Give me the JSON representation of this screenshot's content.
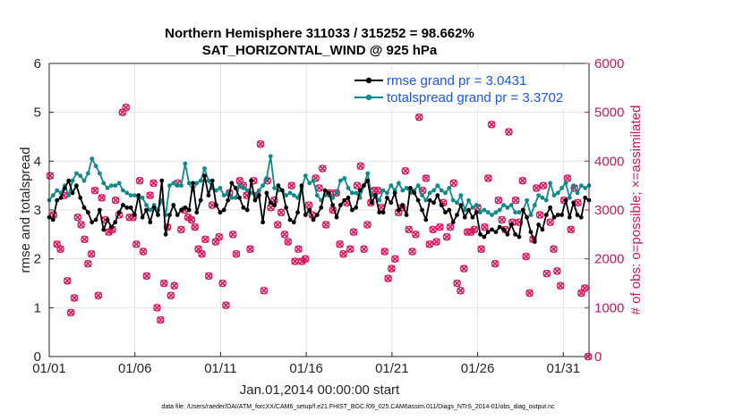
{
  "chart_data": {
    "type": "line",
    "title_line1": "Northern Hemisphere 311033 / 315252 = 98.662%",
    "title_line2": "SAT_HORIZONTAL_WIND @ 925 hPa",
    "xlabel": "Jan.01,2014 00:00:00 start",
    "ylabel_left": "rmse and totalspread",
    "ylabel_right": "# of obs: o=possible; ×=assimilated",
    "xlim": [
      0,
      31.5
    ],
    "ylim_left": [
      0,
      6
    ],
    "ylim_right": [
      0,
      6000
    ],
    "x_ticks": [
      0,
      5,
      10,
      15,
      20,
      25,
      30
    ],
    "x_tick_labels": [
      "01/01",
      "01/06",
      "01/11",
      "01/16",
      "01/21",
      "01/26",
      "01/31"
    ],
    "y_ticks_left": [
      "0",
      "1",
      "2",
      "3",
      "4",
      "5",
      "6"
    ],
    "y_ticks_right": [
      "0",
      "1000",
      "2000",
      "3000",
      "4000",
      "5000",
      "6000"
    ],
    "grid": true,
    "legend_position": "top-right",
    "footnote": "data file: /Users/raeder/DAI/ATM_forcXX/CAM6_setup/f.e21.FHIST_BGC.f09_025.CAM6assim.011/Diags_NTrS_2014-01/obs_diag_output.nc",
    "colors": {
      "rmse": "#000000",
      "spread": "#0f8a8a",
      "obs": "#d6195f",
      "legend_text": "#1a56e8",
      "right_axis": "#c8175f"
    },
    "series": [
      {
        "name": "rmse",
        "legend": "rmse grand pr = 3.0431",
        "values": [
          2.85,
          2.8,
          3.2,
          3.25,
          3.45,
          3.6,
          3.35,
          3.5,
          3.25,
          3.05,
          2.95,
          2.75,
          2.8,
          3.0,
          2.6,
          2.8,
          2.65,
          2.75,
          2.95,
          3.1,
          3.05,
          3.05,
          2.9,
          3.3,
          2.85,
          3.0,
          2.75,
          3.05,
          2.9,
          3.6,
          2.5,
          2.9,
          3.1,
          2.9,
          3.0,
          3.05,
          3.0,
          3.55,
          2.95,
          3.2,
          3.7,
          3.3,
          3.6,
          3.1,
          2.95,
          3.0,
          3.2,
          3.55,
          3.45,
          3.25,
          3.05,
          3.0,
          3.6,
          3.2,
          3.3,
          2.75,
          3.35,
          3.15,
          3.1,
          3.5,
          3.4,
          3.05,
          2.8,
          2.75,
          2.95,
          3.5,
          2.9,
          3.0,
          2.8,
          2.9,
          3.05,
          3.4,
          3.35,
          3.1,
          2.85,
          3.1,
          3.2,
          3.25,
          3.0,
          3.05,
          3.4,
          3.5,
          3.6,
          3.15,
          3.3,
          2.95,
          2.95,
          3.25,
          3.15,
          3.35,
          3.0,
          3.1,
          2.9,
          3.45,
          3.35,
          3.2,
          3.0,
          2.8,
          3.2,
          3.15,
          3.3,
          3.1,
          2.95,
          3.0,
          2.75,
          2.9,
          3.1,
          2.85,
          3.0,
          2.85,
          2.95,
          2.5,
          2.45,
          2.55,
          2.6,
          2.55,
          2.65,
          2.6,
          2.5,
          2.7,
          2.5,
          2.45,
          3.0,
          2.85,
          2.55,
          2.35,
          2.7,
          2.6,
          2.9,
          3.05,
          2.85,
          2.9,
          2.9,
          3.2,
          2.85,
          3.15,
          2.9,
          2.85,
          3.25,
          3.2
        ]
      },
      {
        "name": "totalspread",
        "legend": "totalspread grand pr = 3.3702",
        "values": [
          3.2,
          3.3,
          3.4,
          3.35,
          3.5,
          3.3,
          3.6,
          3.75,
          3.7,
          3.6,
          3.75,
          4.05,
          3.9,
          3.75,
          3.55,
          3.45,
          3.5,
          3.5,
          3.55,
          3.4,
          3.35,
          3.3,
          3.3,
          3.25,
          3.25,
          3.1,
          3.0,
          3.1,
          3.0,
          3.2,
          2.9,
          3.5,
          3.55,
          3.5,
          3.5,
          3.95,
          3.55,
          3.4,
          3.55,
          3.6,
          3.85,
          3.6,
          3.45,
          3.4,
          3.45,
          3.3,
          3.35,
          3.25,
          3.25,
          3.5,
          3.45,
          3.4,
          3.35,
          3.3,
          3.4,
          3.5,
          3.65,
          4.1,
          3.45,
          3.4,
          3.4,
          3.3,
          3.35,
          3.3,
          3.25,
          3.45,
          3.7,
          3.55,
          3.6,
          3.3,
          3.2,
          3.3,
          3.3,
          3.25,
          3.35,
          3.6,
          3.65,
          3.45,
          3.35,
          3.35,
          3.25,
          3.5,
          3.75,
          3.3,
          3.3,
          3.2,
          3.4,
          3.35,
          3.5,
          3.4,
          3.55,
          3.4,
          3.45,
          3.35,
          3.4,
          3.5,
          3.3,
          3.2,
          3.35,
          3.4,
          3.5,
          3.4,
          3.35,
          3.45,
          3.2,
          3.15,
          3.3,
          3.0,
          3.2,
          3.05,
          3.1,
          2.95,
          3.0,
          2.95,
          2.9,
          2.95,
          3.0,
          3.1,
          3.05,
          3.1,
          2.95,
          2.95,
          3.0,
          3.2,
          2.9,
          3.1,
          3.3,
          3.25,
          3.2,
          3.55,
          3.3,
          3.35,
          3.45,
          3.55,
          3.25,
          3.5,
          3.35,
          3.5,
          3.45,
          3.5
        ]
      }
    ],
    "obs_count": {
      "name": "# of obs",
      "values": [
        3700,
        2900,
        2300,
        2200,
        3300,
        1550,
        900,
        1200,
        2850,
        2700,
        2400,
        1900,
        2100,
        3400,
        1250,
        3250,
        2800,
        2550,
        2600,
        3200,
        2900,
        5000,
        5100,
        2850,
        2850,
        2300,
        3600,
        2150,
        1650,
        3300,
        3550,
        1000,
        750,
        1500,
        2650,
        1250,
        1450,
        3550,
        2600,
        3000,
        2850,
        2800,
        2650,
        2200,
        2100,
        2400,
        1650,
        3100,
        2350,
        2450,
        1500,
        1050,
        3350,
        2500,
        2100,
        3600,
        3500,
        3300,
        2200,
        3600,
        3300,
        4350,
        1350,
        3600,
        3050,
        3200,
        2700,
        2950,
        2500,
        2350,
        3500,
        1950,
        2200,
        1950,
        2000,
        3100,
        2900,
        3650,
        3450,
        3850,
        2700,
        3350,
        3000,
        3350,
        2300,
        2100,
        3150,
        2200,
        2550,
        3500,
        3900,
        2200,
        2700,
        3150,
        3400,
        3400,
        3050,
        2150,
        1600,
        1800,
        2000,
        2950,
        3050,
        3800,
        2600,
        2150,
        2500,
        4900,
        3400,
        3650,
        2300,
        2600,
        2350,
        2650,
        3150,
        2450,
        2650,
        3550,
        1500,
        1350,
        1800,
        2550,
        2550,
        2600,
        3050,
        2200,
        2650,
        3650,
        4750,
        1900,
        3200,
        2800,
        2600,
        4600,
        2750,
        3200,
        2750,
        3600,
        2050,
        1300,
        2400,
        3450,
        2900,
        3500,
        1700,
        2750,
        2200,
        1750,
        1450,
        3200,
        3650,
        2600,
        3450,
        3150,
        1300,
        1400,
        0
      ]
    }
  }
}
